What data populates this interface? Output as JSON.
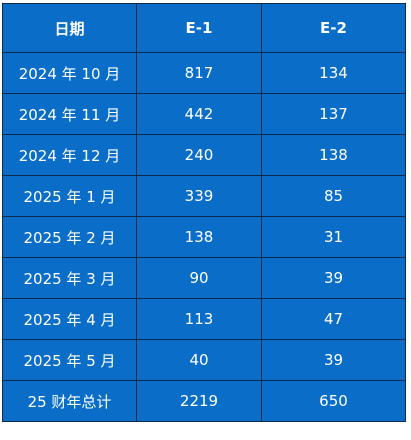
{
  "table": {
    "headers": [
      "日期",
      "E-1",
      "E-2"
    ],
    "rows": [
      [
        "2024 年 10 月",
        "817",
        "134"
      ],
      [
        "2024 年 11 月",
        "442",
        "137"
      ],
      [
        "2024 年 12 月",
        "240",
        "138"
      ],
      [
        "2025 年 1 月",
        "339",
        "85"
      ],
      [
        "2025 年 2 月",
        "138",
        "31"
      ],
      [
        "2025 年 3 月",
        "90",
        "39"
      ],
      [
        "2025 年 4 月",
        "113",
        "47"
      ],
      [
        "2025 年 5 月",
        "40",
        "39"
      ],
      [
        "25 财年总计",
        "2219",
        "650"
      ]
    ]
  },
  "colors": {
    "cell_bg": "#0a6ec9",
    "border": "#0f2a4a",
    "text": "#ffffff"
  }
}
